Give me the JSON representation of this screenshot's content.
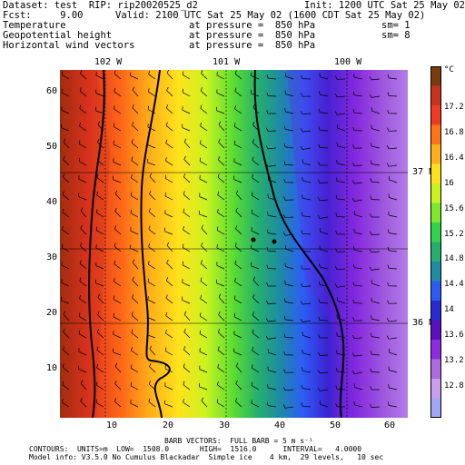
{
  "header": {
    "dataset": "Dataset: test  RIP: rip20020525_d2",
    "init": "Init: 1200 UTC Sat 25 May 02",
    "fcst": "Fcst:     9.00",
    "valid": "Valid: 2100 UTC Sat 25 May 02 (1600 CDT Sat 25 May 02)",
    "fields": [
      {
        "name": "Temperature",
        "level": "at pressure =  850 hPa",
        "sm": "sm= 1"
      },
      {
        "name": "Geopotential height",
        "level": "at pressure =  850 hPa",
        "sm": "sm= 8"
      },
      {
        "name": "Horizontal wind vectors",
        "level": "at pressure =  850 hPa",
        "sm": ""
      }
    ]
  },
  "map": {
    "lon_labels": [
      "102 W",
      "101 W",
      "100 W"
    ],
    "lat_labels": [
      "37 N",
      "36 N"
    ],
    "y_ticks": [
      "60",
      "50",
      "40",
      "30",
      "20",
      "10"
    ],
    "x_ticks": [
      "10",
      "20",
      "30",
      "40",
      "50",
      "60"
    ]
  },
  "colorbar": {
    "unit": "°C",
    "labels": [
      "17.2",
      "16.8",
      "16.4",
      "16",
      "15.6",
      "15.2",
      "14.8",
      "14.4",
      "14",
      "13.6",
      "13.2",
      "12.8"
    ],
    "colors": [
      "#7a3c0e",
      "#c8331b",
      "#f03a23",
      "#ff7417",
      "#ffaf19",
      "#ffe21c",
      "#c9f320",
      "#7ee82a",
      "#2fd44c",
      "#25ae6e",
      "#1e8ca2",
      "#2d5cf5",
      "#2a2ad2",
      "#5a10c0",
      "#8c2ce0",
      "#b06ae0",
      "#c99eee",
      "#a0a8f6"
    ]
  },
  "footer": {
    "barbs": "BARB VECTORS:  FULL BARB = 5 m s⁻¹",
    "contours": "CONTOURS:  UNITS=m  LOW=  1508.0       HIGH=  1516.0      INTERVAL=   4.0000",
    "model": "Model info: V3.5.0 No Cumulus Blackadar  Simple ice    4 km,  29 levels,   10 sec"
  }
}
